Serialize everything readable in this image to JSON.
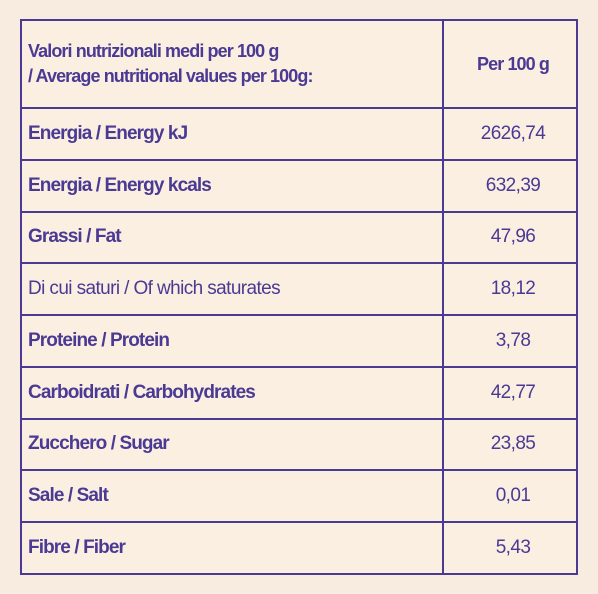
{
  "table": {
    "header": {
      "label_line1": "Valori nutrizionali medi per 100 g",
      "label_line2": "/ Average nutritional values per 100g:",
      "value": "Per 100 g"
    },
    "rows": [
      {
        "label": "Energia / Energy kJ",
        "value": "2626,74"
      },
      {
        "label": "Energia / Energy kcals",
        "value": "632,39"
      },
      {
        "label": "Grassi / Fat",
        "value": "47,96"
      },
      {
        "label": "Di cui saturi / Of which saturates",
        "value": "18,12"
      },
      {
        "label": "Proteine / Protein",
        "value": "3,78"
      },
      {
        "label": "Carboidrati / Carbohydrates",
        "value": "42,77"
      },
      {
        "label": "Zucchero / Sugar",
        "value": "23,85"
      },
      {
        "label": "Sale / Salt",
        "value": "0,01"
      },
      {
        "label": "Fibre / Fiber",
        "value": "5,43"
      }
    ]
  },
  "colors": {
    "background": "#f8ece0",
    "ink": "#4a3a93"
  }
}
